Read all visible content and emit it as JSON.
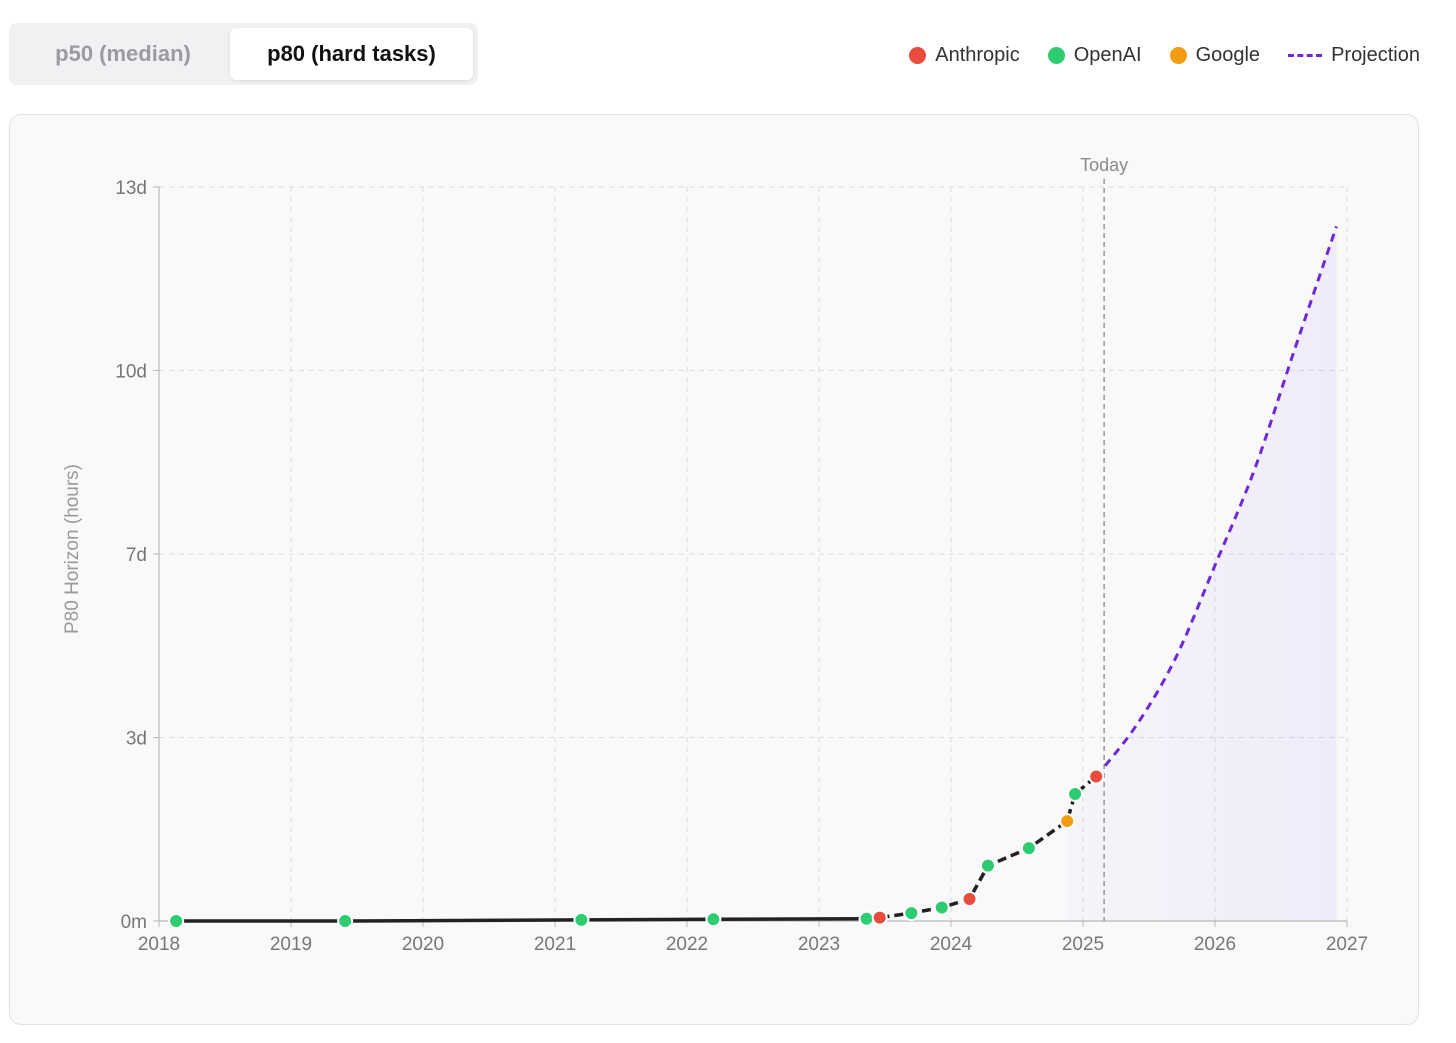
{
  "toggle": {
    "options": [
      {
        "label": "p50 (median)",
        "active": false
      },
      {
        "label": "p80 (hard tasks)",
        "active": true
      }
    ]
  },
  "legend": [
    {
      "label": "Anthropic",
      "color": "#e74c3c",
      "kind": "dot"
    },
    {
      "label": "OpenAI",
      "color": "#2ecc71",
      "kind": "dot"
    },
    {
      "label": "Google",
      "color": "#f39c12",
      "kind": "dot"
    },
    {
      "label": "Projection",
      "color": "#6d28d9",
      "kind": "dash"
    }
  ],
  "chart_data": {
    "type": "line",
    "ylabel": "P80 Horizon (hours)",
    "xlabel": "",
    "xlim": [
      2018,
      2027
    ],
    "ylim": [
      0,
      13
    ],
    "y_unit": "days",
    "x_ticks": [
      "2018",
      "2019",
      "2020",
      "2021",
      "2022",
      "2023",
      "2024",
      "2025",
      "2026",
      "2027"
    ],
    "y_ticks": [
      {
        "value": 0,
        "label": "0m"
      },
      {
        "value": 3.25,
        "label": "3d"
      },
      {
        "value": 6.5,
        "label": "7d"
      },
      {
        "value": 9.75,
        "label": "10d"
      },
      {
        "value": 13,
        "label": "13d"
      }
    ],
    "grid": true,
    "today": {
      "label": "Today",
      "x": 2025.16
    },
    "series": [
      {
        "points": [
          {
            "x": 2018.13,
            "y": 0.0,
            "org": "OpenAI"
          },
          {
            "x": 2019.41,
            "y": 0.0,
            "org": "OpenAI"
          },
          {
            "x": 2021.2,
            "y": 0.02,
            "org": "OpenAI"
          },
          {
            "x": 2022.2,
            "y": 0.03,
            "org": "OpenAI"
          },
          {
            "x": 2023.36,
            "y": 0.04,
            "org": "OpenAI"
          },
          {
            "x": 2023.46,
            "y": 0.06,
            "org": "Anthropic"
          },
          {
            "x": 2023.7,
            "y": 0.14,
            "org": "OpenAI"
          },
          {
            "x": 2023.93,
            "y": 0.24,
            "org": "OpenAI"
          },
          {
            "x": 2024.14,
            "y": 0.39,
            "org": "Anthropic"
          },
          {
            "x": 2024.28,
            "y": 0.98,
            "org": "OpenAI"
          },
          {
            "x": 2024.59,
            "y": 1.29,
            "org": "OpenAI"
          },
          {
            "x": 2024.88,
            "y": 1.77,
            "org": "Google"
          },
          {
            "x": 2024.94,
            "y": 2.25,
            "org": "OpenAI"
          },
          {
            "x": 2025.1,
            "y": 2.56,
            "org": "Anthropic"
          }
        ]
      },
      {
        "name": "Projection",
        "points": [
          {
            "x": 2025.1,
            "y": 2.56
          },
          {
            "x": 2025.4,
            "y": 3.45
          },
          {
            "x": 2025.7,
            "y": 4.65
          },
          {
            "x": 2026.0,
            "y": 6.3
          },
          {
            "x": 2026.3,
            "y": 8.0
          },
          {
            "x": 2026.6,
            "y": 10.1
          },
          {
            "x": 2026.92,
            "y": 12.3
          }
        ]
      }
    ]
  }
}
